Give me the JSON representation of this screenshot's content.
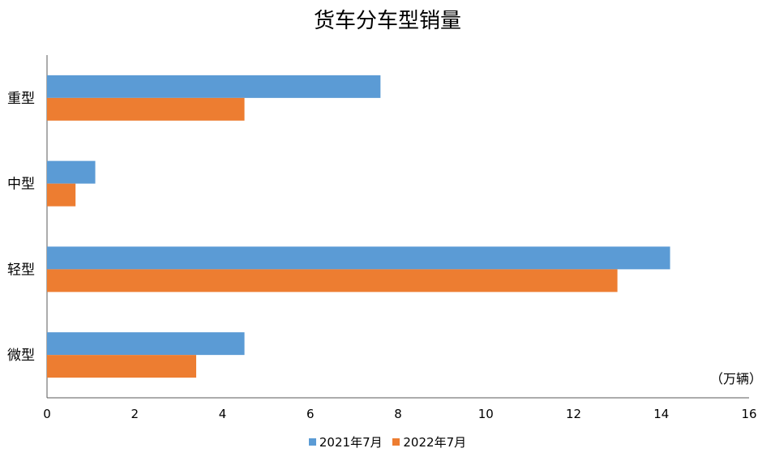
{
  "chart_data": {
    "type": "bar",
    "orientation": "horizontal",
    "title": "货车分车型销量",
    "unit_label": "（万辆）",
    "categories": [
      "重型",
      "中型",
      "轻型",
      "微型"
    ],
    "series": [
      {
        "name": "2021年7月",
        "color": "#5B9BD5",
        "values": [
          7.6,
          1.1,
          14.2,
          4.5
        ]
      },
      {
        "name": "2022年7月",
        "color": "#ED7D31",
        "values": [
          4.5,
          0.65,
          13.0,
          3.4
        ]
      }
    ],
    "xlim": [
      0,
      16
    ],
    "xticks": [
      0,
      2,
      4,
      6,
      8,
      10,
      12,
      14,
      16
    ],
    "grid": false,
    "legend_position": "bottom"
  }
}
